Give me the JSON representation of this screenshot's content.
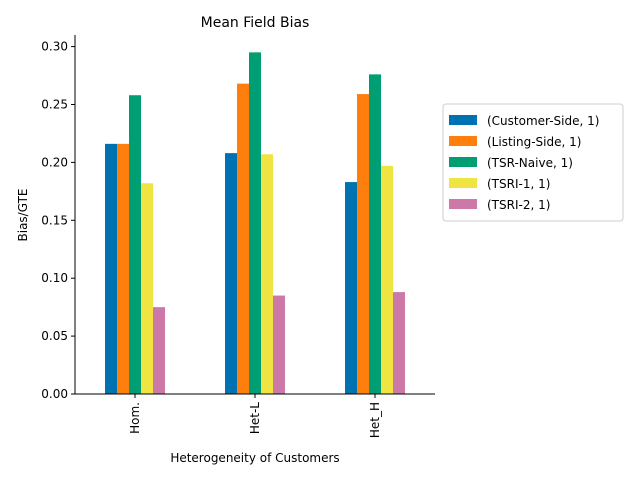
{
  "chart_data": {
    "type": "bar",
    "title": "Mean Field Bias",
    "xlabel": "Heterogeneity of Customers",
    "ylabel": "Bias/GTE",
    "categories": [
      "Hom.",
      "Het-L",
      "Het_H"
    ],
    "ylim": [
      0,
      0.31
    ],
    "yticks": [
      "0.00",
      "0.05",
      "0.10",
      "0.15",
      "0.20",
      "0.25",
      "0.30"
    ],
    "grid": false,
    "legend_position": "right",
    "series": [
      {
        "name": "(Customer-Side, 1)",
        "color": "#0072b2",
        "values": [
          0.216,
          0.208,
          0.183
        ]
      },
      {
        "name": "(Listing-Side, 1)",
        "color": "#ff7f0e",
        "values": [
          0.216,
          0.268,
          0.259
        ]
      },
      {
        "name": "(TSR-Naive, 1)",
        "color": "#009e73",
        "values": [
          0.258,
          0.295,
          0.276
        ]
      },
      {
        "name": "(TSRI-1, 1)",
        "color": "#f0e442",
        "values": [
          0.182,
          0.207,
          0.197
        ]
      },
      {
        "name": "(TSRI-2, 1)",
        "color": "#cc79a7",
        "values": [
          0.075,
          0.085,
          0.088
        ]
      }
    ]
  }
}
